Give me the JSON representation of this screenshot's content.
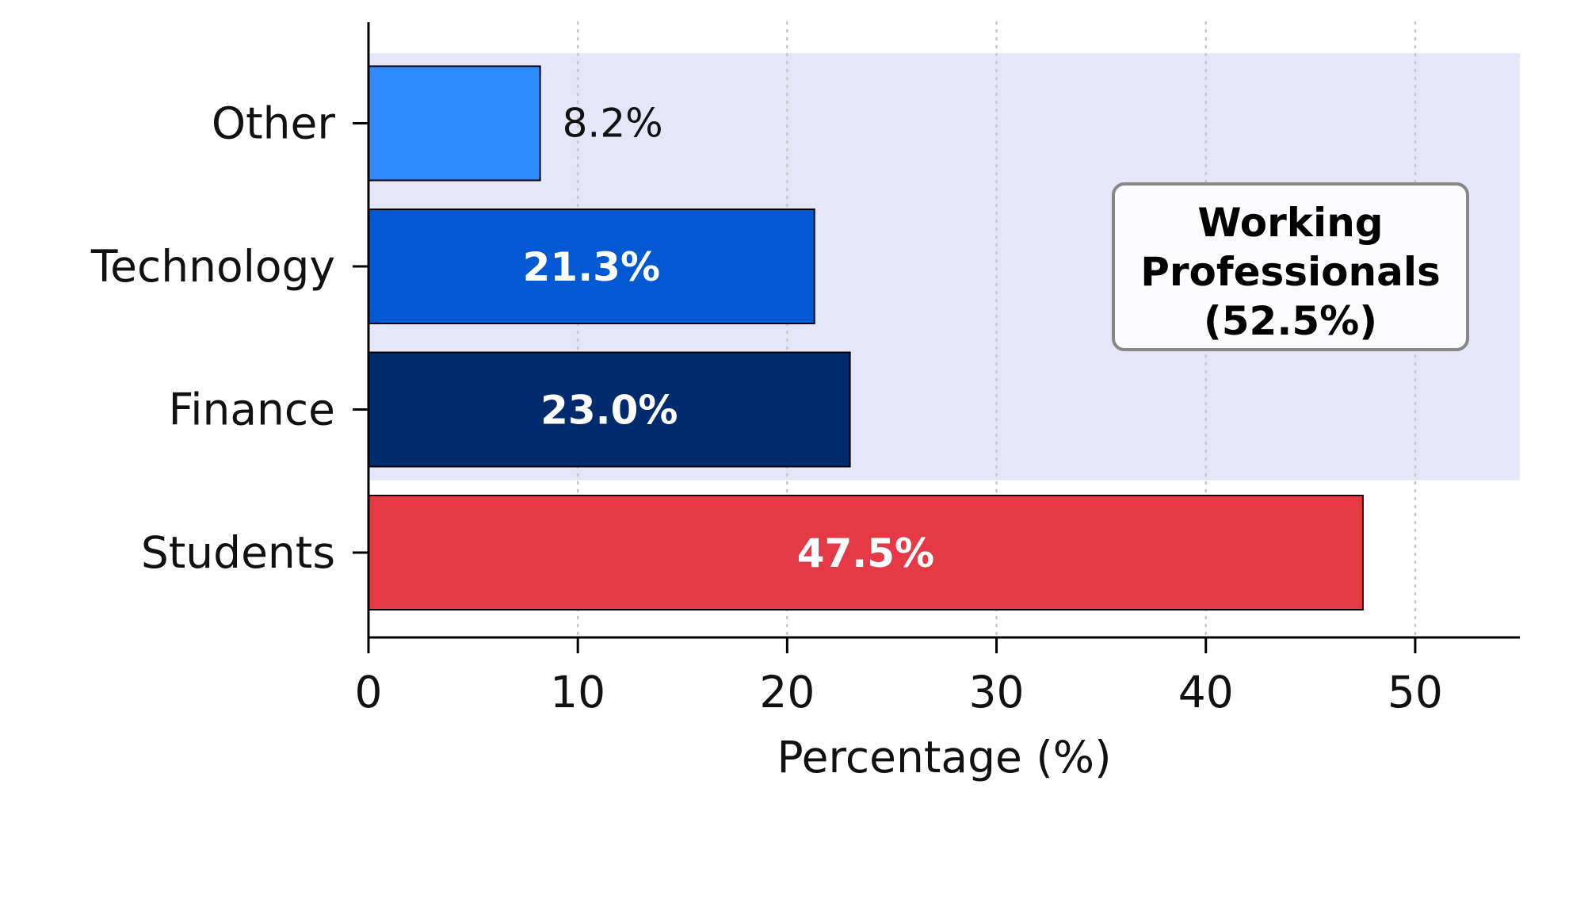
{
  "chart_data": {
    "type": "bar",
    "orientation": "horizontal",
    "categories": [
      "Students",
      "Finance",
      "Technology",
      "Other"
    ],
    "values": [
      47.5,
      23.0,
      21.3,
      8.2
    ],
    "value_labels": [
      "47.5%",
      "23.0%",
      "21.3%",
      "8.2%"
    ],
    "colors": [
      "#E63946",
      "#002B6E",
      "#0359D3",
      "#2E8BFF"
    ],
    "xlabel": "Percentage (%)",
    "ylabel": "",
    "title": "",
    "xlim": [
      0,
      55
    ],
    "xticks": [
      0,
      10,
      20,
      30,
      40,
      50
    ],
    "grid": "x-dotted",
    "highlight_band": {
      "categories": [
        "Finance",
        "Technology",
        "Other"
      ],
      "color": "#E6E6FA"
    },
    "annotation": {
      "lines": [
        "Working",
        "Professionals",
        "(52.5%)"
      ],
      "placement": "right of bars inside highlight band"
    }
  }
}
